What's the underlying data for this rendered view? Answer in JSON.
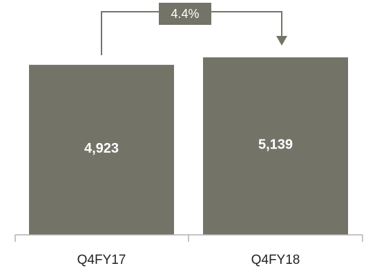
{
  "chart_data": {
    "type": "bar",
    "categories": [
      "Q4FY17",
      "Q4FY18"
    ],
    "values": [
      4923,
      5139
    ],
    "data_labels": [
      "4,923",
      "5,139"
    ],
    "annotation": {
      "text": "4.4%",
      "from": "Q4FY17",
      "to": "Q4FY18"
    },
    "bar_color": "#737368",
    "axis_color": "#b0b0b0",
    "title": "",
    "xlabel": "",
    "ylabel": "",
    "grid": false
  }
}
